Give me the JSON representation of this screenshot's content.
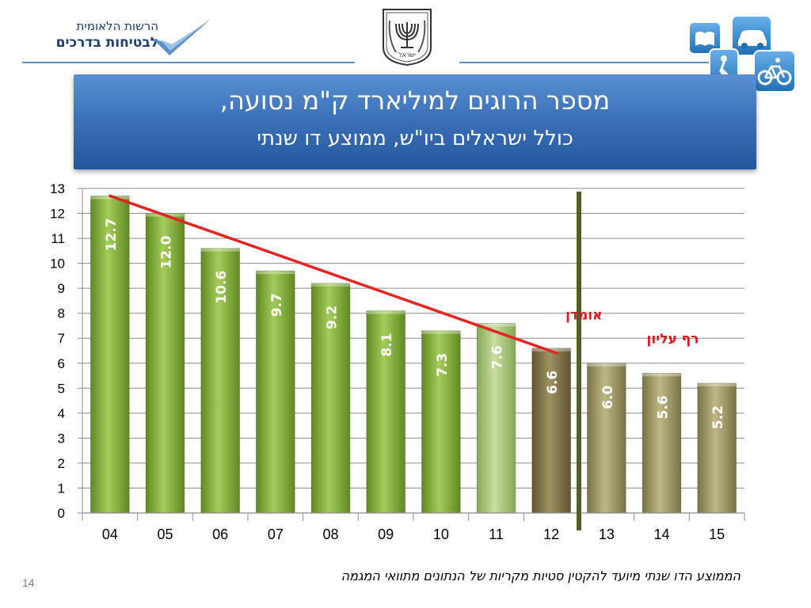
{
  "header": {
    "org_name_line1": "הרשות הלאומית",
    "org_name_line2": "לבטיחות בדרכים",
    "emblem_caption": "ישראל"
  },
  "banner": {
    "title": "מספר הרוגים למיליארד ק\"מ נסועה,",
    "subtitle": "כולל ישראלים ביו\"ש,  ממוצע דו שנתי"
  },
  "chart_data": {
    "type": "bar",
    "categories": [
      "04",
      "05",
      "06",
      "07",
      "08",
      "09",
      "10",
      "11",
      "12",
      "13",
      "14",
      "15"
    ],
    "values": [
      12.7,
      12.0,
      10.6,
      9.7,
      9.2,
      8.1,
      7.3,
      7.6,
      6.6,
      6.0,
      5.6,
      5.2
    ],
    "data_labels": [
      "12.7",
      "12.0",
      "10.6",
      "9.7",
      "9.2",
      "8.1",
      "7.3",
      "7.6",
      "6.6",
      "6.0",
      "5.6",
      "5.2"
    ],
    "ylim": [
      0,
      13
    ],
    "yticks": [
      0,
      1,
      2,
      3,
      4,
      5,
      6,
      7,
      8,
      9,
      10,
      11,
      12,
      13
    ],
    "grid": true,
    "trend_line": {
      "from": [
        "04",
        12.7
      ],
      "to": [
        "12",
        6.4
      ],
      "color": "#e52521"
    },
    "divider_after_category": "12",
    "annotations": [
      {
        "text": "אומדן",
        "color": "#d71920",
        "position": "above-12"
      },
      {
        "text": "רף עליון",
        "color": "#d71920",
        "position": "above-14"
      }
    ],
    "colors": {
      "actual_bar": "#8db43f",
      "estimate_bar": "#a9c877",
      "bar_2012": "#857a48",
      "target_bar": "#9c9462",
      "divider": "#4e6128"
    }
  },
  "footnote": "הממוצע הדו שנתי מיועד להקטין סטיות מקריות של הנתונים מתוואי המגמה",
  "page_number": "14"
}
